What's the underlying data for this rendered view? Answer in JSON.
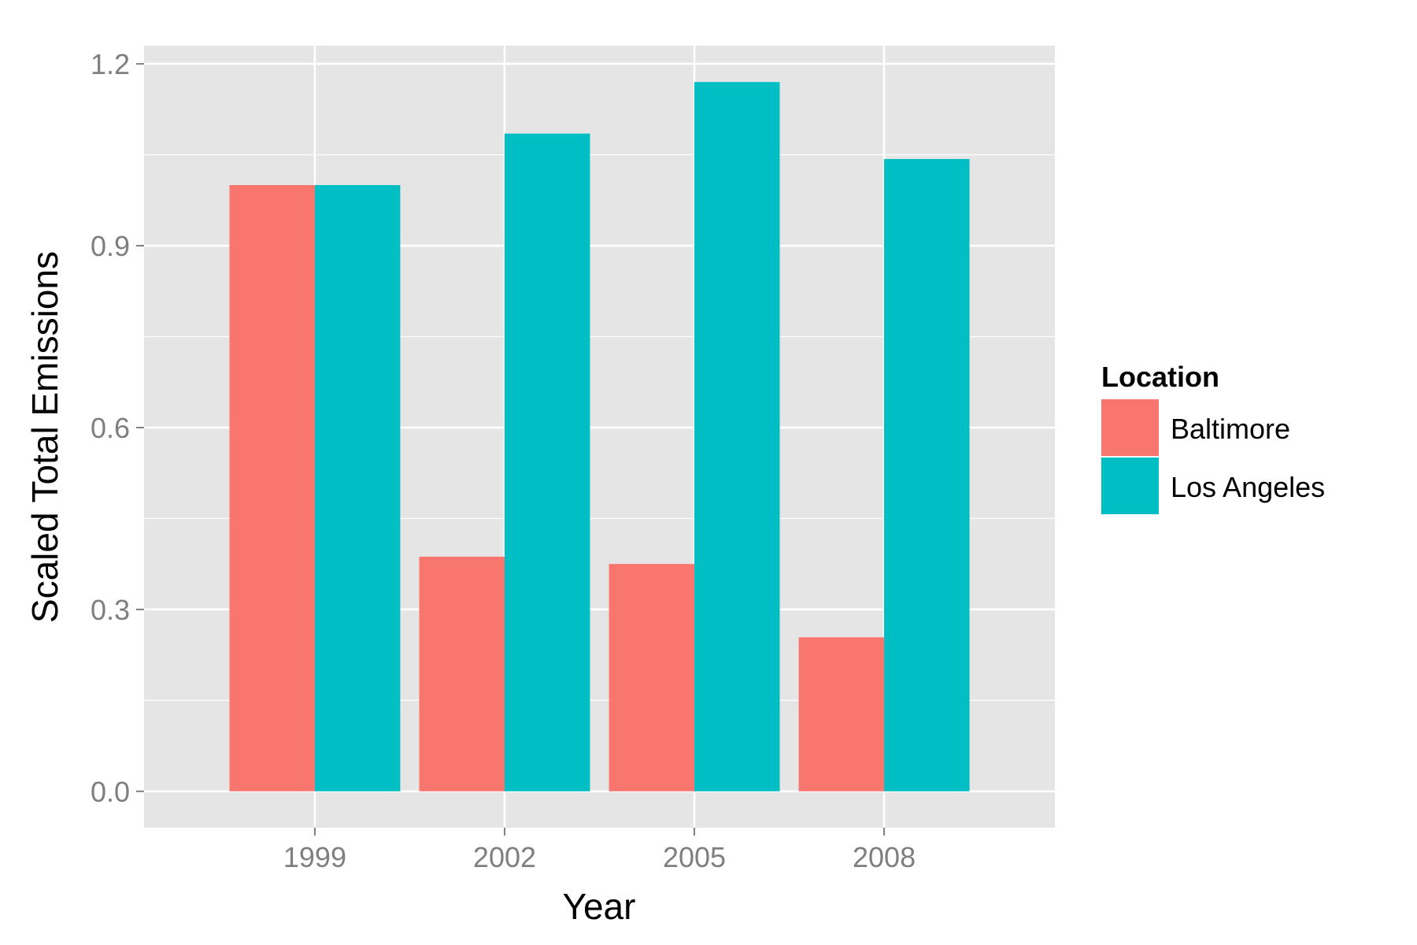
{
  "chart_data": {
    "type": "bar",
    "categories": [
      "1999",
      "2002",
      "2005",
      "2008"
    ],
    "series": [
      {
        "name": "Baltimore",
        "color": "#F8766D",
        "values": [
          1.0,
          0.387,
          0.375,
          0.254
        ]
      },
      {
        "name": "Los Angeles",
        "color": "#00BFC4",
        "values": [
          1.0,
          1.085,
          1.17,
          1.043
        ]
      }
    ],
    "xlabel": "Year",
    "ylabel": "Scaled Total Emissions",
    "ylim": [
      -0.06,
      1.23
    ],
    "yticks": [
      0.0,
      0.3,
      0.6,
      0.9,
      1.2
    ],
    "ytick_labels": [
      "0.0",
      "0.3",
      "0.6",
      "0.9",
      "1.2"
    ],
    "legend": {
      "title": "Location",
      "position": "right"
    },
    "grid": true,
    "panel_background": "#E5E5E5",
    "grid_color": "#FFFFFF"
  }
}
